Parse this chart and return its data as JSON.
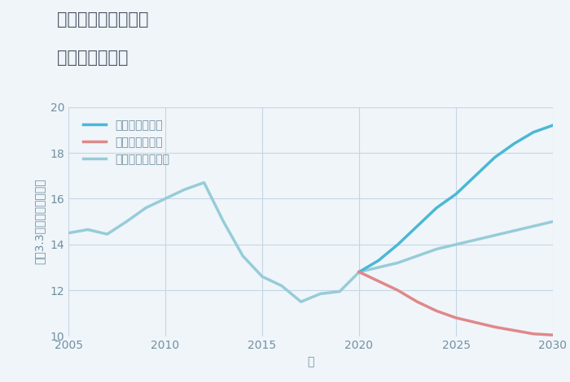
{
  "title_line1": "千葉県八街市沖渡の",
  "title_line2": "土地の価格推移",
  "xlabel": "年",
  "ylabel": "坪（3.3㎡）単価（万円）",
  "background_color": "#f0f5fa",
  "grid_color": "#c5d5e5",
  "historical_years": [
    2005,
    2006,
    2007,
    2008,
    2009,
    2010,
    2011,
    2012,
    2013,
    2014,
    2015,
    2016,
    2017,
    2018,
    2019,
    2020
  ],
  "historical_values": [
    14.5,
    14.65,
    14.45,
    15.0,
    15.6,
    16.0,
    16.4,
    16.7,
    15.0,
    13.5,
    12.6,
    12.2,
    11.5,
    11.85,
    11.95,
    12.8
  ],
  "good_years": [
    2020,
    2021,
    2022,
    2023,
    2024,
    2025,
    2026,
    2027,
    2028,
    2029,
    2030
  ],
  "good_values": [
    12.8,
    13.3,
    14.0,
    14.8,
    15.6,
    16.2,
    17.0,
    17.8,
    18.4,
    18.9,
    19.2
  ],
  "bad_years": [
    2020,
    2021,
    2022,
    2023,
    2024,
    2025,
    2026,
    2027,
    2028,
    2029,
    2030
  ],
  "bad_values": [
    12.8,
    12.4,
    12.0,
    11.5,
    11.1,
    10.8,
    10.6,
    10.4,
    10.25,
    10.1,
    10.05
  ],
  "normal_years": [
    2020,
    2021,
    2022,
    2023,
    2024,
    2025,
    2026,
    2027,
    2028,
    2029,
    2030
  ],
  "normal_values": [
    12.8,
    13.0,
    13.2,
    13.5,
    13.8,
    14.0,
    14.2,
    14.4,
    14.6,
    14.8,
    15.0
  ],
  "good_color": "#4ab8d4",
  "bad_color": "#e08888",
  "normal_color": "#96ccd8",
  "historical_color": "#96ccd8",
  "ylim": [
    10,
    20
  ],
  "xlim": [
    2005,
    2030
  ],
  "yticks": [
    10,
    12,
    14,
    16,
    18,
    20
  ],
  "xticks": [
    2005,
    2010,
    2015,
    2020,
    2025,
    2030
  ],
  "legend_labels": [
    "グッドシナリオ",
    "バッドシナリオ",
    "ノーマルシナリオ"
  ],
  "line_width": 2.5
}
